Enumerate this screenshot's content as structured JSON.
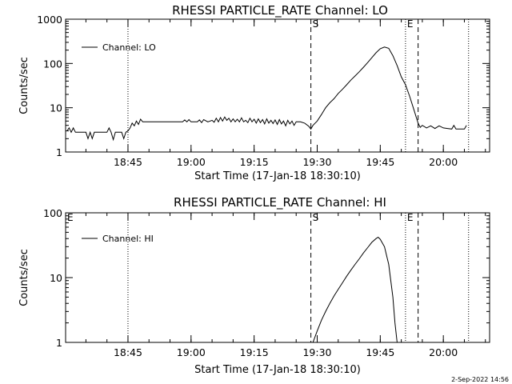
{
  "footer": {
    "timestamp": "2-Sep-2022 14:56"
  },
  "chart_data": [
    {
      "type": "line",
      "title": "RHESSI PARTICLE_RATE Channel: LO",
      "xlabel": "Start Time (17-Jan-18 18:30:10)",
      "ylabel": "Counts/sec",
      "y_scale": "log",
      "xlim": [
        "18:30:10",
        "20:11:00"
      ],
      "ylim": [
        1,
        1000
      ],
      "x_ticks": [
        "18:45",
        "19:00",
        "19:15",
        "19:30",
        "19:45",
        "20:00"
      ],
      "y_ticks": [
        "1",
        "10",
        "100",
        "1000"
      ],
      "legend": {
        "position": "top-left",
        "entries": [
          "Channel: LO"
        ]
      },
      "markers": [
        {
          "time": "18:45",
          "style": "dotted",
          "label": ""
        },
        {
          "time": "19:28:30",
          "style": "dashed",
          "label": "S"
        },
        {
          "time": "19:51:00",
          "style": "dotted",
          "label": "E"
        },
        {
          "time": "19:54:00",
          "style": "dashed",
          "label": ""
        },
        {
          "time": "20:06:00",
          "style": "dotted",
          "label": ""
        }
      ],
      "series": [
        {
          "name": "Channel: LO",
          "points": [
            [
              "18:30:30",
              3.0
            ],
            [
              "18:31:00",
              3.5
            ],
            [
              "18:31:30",
              2.8
            ],
            [
              "18:32:00",
              3.5
            ],
            [
              "18:32:30",
              2.8
            ],
            [
              "18:35:00",
              2.8
            ],
            [
              "18:35:30",
              2.0
            ],
            [
              "18:36:00",
              2.8
            ],
            [
              "18:36:30",
              2.0
            ],
            [
              "18:37:00",
              2.8
            ],
            [
              "18:40:00",
              2.8
            ],
            [
              "18:40:30",
              3.5
            ],
            [
              "18:41:00",
              2.8
            ],
            [
              "18:41:30",
              1.9
            ],
            [
              "18:42:00",
              2.8
            ],
            [
              "18:43:30",
              2.8
            ],
            [
              "18:44:00",
              2.0
            ],
            [
              "18:44:30",
              2.8
            ],
            [
              "18:45:00",
              3.0
            ],
            [
              "18:45:30",
              3.5
            ],
            [
              "18:46:00",
              4.5
            ],
            [
              "18:46:30",
              3.9
            ],
            [
              "18:47:00",
              5.0
            ],
            [
              "18:47:30",
              4.2
            ],
            [
              "18:48:00",
              5.5
            ],
            [
              "18:48:30",
              4.8
            ],
            [
              "18:50:00",
              4.8
            ],
            [
              "18:55:00",
              4.8
            ],
            [
              "18:58:00",
              4.8
            ],
            [
              "18:58:30",
              5.3
            ],
            [
              "18:59:00",
              4.8
            ],
            [
              "18:59:30",
              5.4
            ],
            [
              "19:00:00",
              4.8
            ],
            [
              "19:01:30",
              4.8
            ],
            [
              "19:02:00",
              5.3
            ],
            [
              "19:02:30",
              4.6
            ],
            [
              "19:03:00",
              5.4
            ],
            [
              "19:04:00",
              4.8
            ],
            [
              "19:05:00",
              5.2
            ],
            [
              "19:05:30",
              4.7
            ],
            [
              "19:06:00",
              5.8
            ],
            [
              "19:06:30",
              4.8
            ],
            [
              "19:07:00",
              6.0
            ],
            [
              "19:07:30",
              5.0
            ],
            [
              "19:08:00",
              6.2
            ],
            [
              "19:08:30",
              5.2
            ],
            [
              "19:09:00",
              5.8
            ],
            [
              "19:09:30",
              4.8
            ],
            [
              "19:10:00",
              5.6
            ],
            [
              "19:10:30",
              4.8
            ],
            [
              "19:11:00",
              5.5
            ],
            [
              "19:11:30",
              4.8
            ],
            [
              "19:12:00",
              5.9
            ],
            [
              "19:12:30",
              4.8
            ],
            [
              "19:13:00",
              5.2
            ],
            [
              "19:13:30",
              4.6
            ],
            [
              "19:14:00",
              5.8
            ],
            [
              "19:14:30",
              4.8
            ],
            [
              "19:15:00",
              5.5
            ],
            [
              "19:15:30",
              4.5
            ],
            [
              "19:16:00",
              5.6
            ],
            [
              "19:16:30",
              4.6
            ],
            [
              "19:17:00",
              5.4
            ],
            [
              "19:17:30",
              4.3
            ],
            [
              "19:18:00",
              5.6
            ],
            [
              "19:18:30",
              4.5
            ],
            [
              "19:19:00",
              5.2
            ],
            [
              "19:19:30",
              4.4
            ],
            [
              "19:20:00",
              5.3
            ],
            [
              "19:20:30",
              4.2
            ],
            [
              "19:21:00",
              5.4
            ],
            [
              "19:21:30",
              4.3
            ],
            [
              "19:22:00",
              5.0
            ],
            [
              "19:22:30",
              3.9
            ],
            [
              "19:23:00",
              5.2
            ],
            [
              "19:23:30",
              4.3
            ],
            [
              "19:24:00",
              5.0
            ],
            [
              "19:24:30",
              4.0
            ],
            [
              "19:25:00",
              4.8
            ],
            [
              "19:26:00",
              4.8
            ],
            [
              "19:27:00",
              4.5
            ],
            [
              "19:28:00",
              3.8
            ],
            [
              "19:28:30",
              3.3
            ],
            [
              "19:29:00",
              4.0
            ],
            [
              "19:30:00",
              5.0
            ],
            [
              "19:31:00",
              7.0
            ],
            [
              "19:32:00",
              10.0
            ],
            [
              "19:33:00",
              13.0
            ],
            [
              "19:34:00",
              16.0
            ],
            [
              "19:35:00",
              21.0
            ],
            [
              "19:36:00",
              26.0
            ],
            [
              "19:37:00",
              33.0
            ],
            [
              "19:38:00",
              42.0
            ],
            [
              "19:39:00",
              52.0
            ],
            [
              "19:40:00",
              65.0
            ],
            [
              "19:41:00",
              82.0
            ],
            [
              "19:42:00",
              105.0
            ],
            [
              "19:43:00",
              135.0
            ],
            [
              "19:44:00",
              175.0
            ],
            [
              "19:45:00",
              215.0
            ],
            [
              "19:46:00",
              235.0
            ],
            [
              "19:47:00",
              220.0
            ],
            [
              "19:48:00",
              150.0
            ],
            [
              "19:49:00",
              90.0
            ],
            [
              "19:50:00",
              50.0
            ],
            [
              "19:51:00",
              33.0
            ],
            [
              "19:52:00",
              18.0
            ],
            [
              "19:53:00",
              9.0
            ],
            [
              "19:54:00",
              4.5
            ],
            [
              "19:54:30",
              3.6
            ],
            [
              "19:55:00",
              4.0
            ],
            [
              "19:56:00",
              3.5
            ],
            [
              "19:57:00",
              3.9
            ],
            [
              "19:58:00",
              3.4
            ],
            [
              "19:59:00",
              3.9
            ],
            [
              "20:00:00",
              3.5
            ],
            [
              "20:01:00",
              3.4
            ],
            [
              "20:02:00",
              3.3
            ],
            [
              "20:02:30",
              4.0
            ],
            [
              "20:03:00",
              3.3
            ],
            [
              "20:04:00",
              3.3
            ],
            [
              "20:05:00",
              3.3
            ],
            [
              "20:05:30",
              4.0
            ]
          ]
        }
      ]
    },
    {
      "type": "line",
      "title": "RHESSI PARTICLE_RATE Channel: HI",
      "xlabel": "Start Time (17-Jan-18 18:30:10)",
      "ylabel": "Counts/sec",
      "y_scale": "log",
      "xlim": [
        "18:30:10",
        "20:11:00"
      ],
      "ylim": [
        1,
        100
      ],
      "x_ticks": [
        "18:45",
        "19:00",
        "19:15",
        "19:30",
        "19:45",
        "20:00"
      ],
      "y_ticks": [
        "1",
        "10",
        "100"
      ],
      "legend": {
        "position": "top-left",
        "entries": [
          "Channel: HI"
        ]
      },
      "markers": [
        {
          "time": "18:30:10",
          "style": "none",
          "label": "E"
        },
        {
          "time": "18:45",
          "style": "dotted",
          "label": ""
        },
        {
          "time": "19:28:30",
          "style": "dashed",
          "label": "S"
        },
        {
          "time": "19:51:00",
          "style": "dotted",
          "label": "E"
        },
        {
          "time": "19:54:00",
          "style": "dashed",
          "label": ""
        },
        {
          "time": "20:06:00",
          "style": "dotted",
          "label": ""
        }
      ],
      "series": [
        {
          "name": "Channel: HI",
          "points": [
            [
              "19:29:00",
              1.0
            ],
            [
              "19:30:00",
              1.5
            ],
            [
              "19:31:00",
              2.2
            ],
            [
              "19:32:00",
              3.0
            ],
            [
              "19:33:00",
              4.0
            ],
            [
              "19:34:00",
              5.2
            ],
            [
              "19:35:00",
              6.6
            ],
            [
              "19:36:00",
              8.3
            ],
            [
              "19:37:00",
              10.5
            ],
            [
              "19:38:00",
              13.0
            ],
            [
              "19:39:00",
              16.0
            ],
            [
              "19:40:00",
              19.5
            ],
            [
              "19:41:00",
              24.0
            ],
            [
              "19:42:00",
              29.0
            ],
            [
              "19:43:00",
              35.0
            ],
            [
              "19:44:00",
              40.0
            ],
            [
              "19:44:30",
              42.0
            ],
            [
              "19:45:00",
              39.0
            ],
            [
              "19:46:00",
              30.0
            ],
            [
              "19:47:00",
              16.0
            ],
            [
              "19:48:00",
              5.0
            ],
            [
              "19:48:30",
              2.0
            ],
            [
              "19:49:00",
              1.0
            ]
          ]
        }
      ]
    }
  ]
}
